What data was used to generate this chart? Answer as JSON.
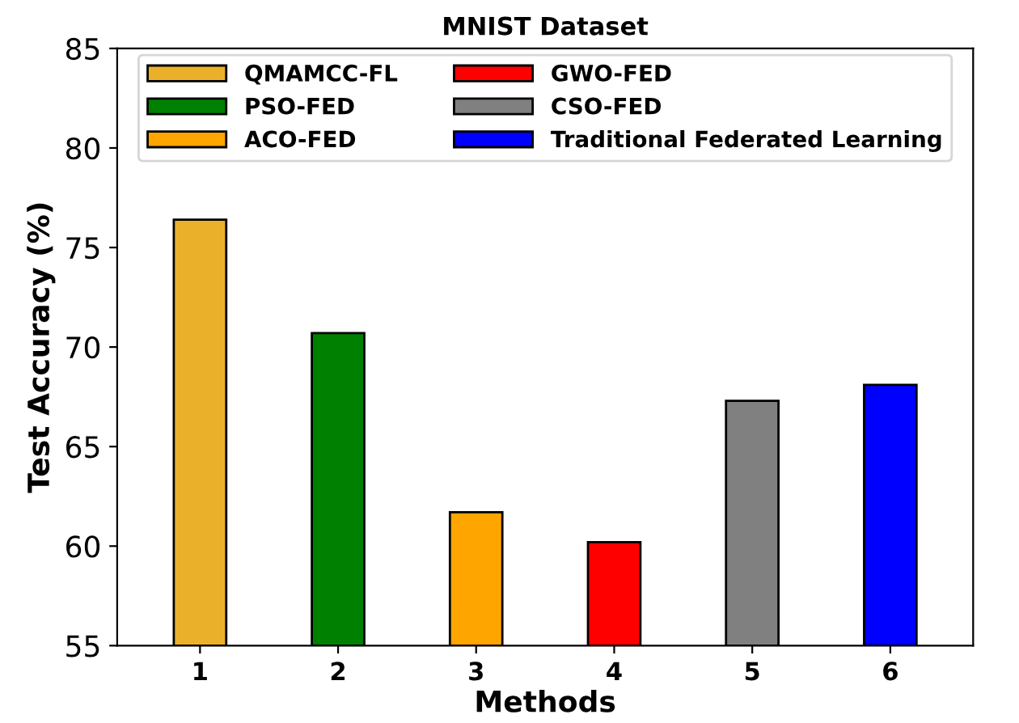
{
  "chart_data": {
    "type": "bar",
    "title": "MNIST Dataset",
    "xlabel": "Methods",
    "ylabel": "Test Accuracy (%)",
    "categories": [
      "1",
      "2",
      "3",
      "4",
      "5",
      "6"
    ],
    "series": [
      {
        "name": "QMAMCC-FL",
        "color": "#ebb02a",
        "values": [
          76.4,
          null,
          null,
          null,
          null,
          null
        ]
      },
      {
        "name": "PSO-FED",
        "color": "#008000",
        "values": [
          null,
          70.7,
          null,
          null,
          null,
          null
        ]
      },
      {
        "name": "ACO-FED",
        "color": "#ffa500",
        "values": [
          null,
          null,
          61.7,
          null,
          null,
          null
        ]
      },
      {
        "name": "GWO-FED",
        "color": "#ff0000",
        "values": [
          null,
          null,
          null,
          60.2,
          null,
          null
        ]
      },
      {
        "name": "CSO-FED",
        "color": "#808080",
        "values": [
          null,
          null,
          null,
          null,
          67.3,
          null
        ]
      },
      {
        "name": "Traditional Federated Learning",
        "color": "#0000ff",
        "values": [
          null,
          null,
          null,
          null,
          null,
          68.1
        ]
      }
    ],
    "ylim": [
      55,
      85
    ],
    "yticks": [
      55,
      60,
      65,
      70,
      75,
      80,
      85
    ],
    "grid": false,
    "legend": "top"
  }
}
